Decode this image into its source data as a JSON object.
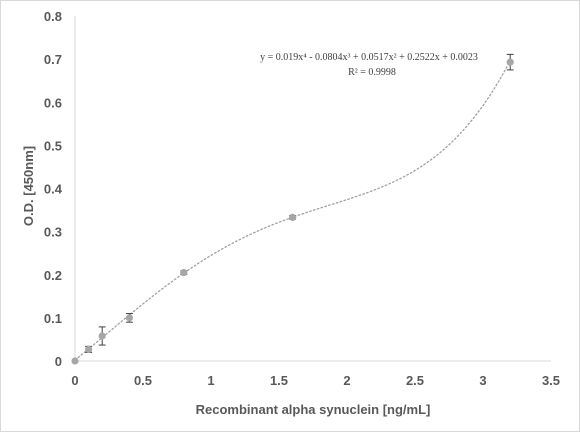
{
  "chart_data": {
    "type": "scatter",
    "title": "",
    "xlabel": "Recombinant alpha synuclein [ng/mL]",
    "ylabel": "O.D. [450nm]",
    "xlim": [
      0,
      3.5
    ],
    "ylim": [
      0,
      0.8
    ],
    "x_ticks": [
      "0",
      "0.5",
      "1",
      "1.5",
      "2",
      "2.5",
      "3",
      "3.5"
    ],
    "y_ticks": [
      "0",
      "0.1",
      "0.2",
      "0.3",
      "0.4",
      "0.5",
      "0.6",
      "0.7",
      "0.8"
    ],
    "grid": false,
    "legend": "none",
    "series": [
      {
        "x": [
          0,
          0.1,
          0.2,
          0.4,
          0.8,
          1.6,
          3.2
        ],
        "y": [
          0.0,
          0.027,
          0.058,
          0.1,
          0.205,
          0.333,
          0.693
        ],
        "error": [
          0.0,
          0.007,
          0.021,
          0.01,
          0.004,
          0.004,
          0.018
        ],
        "marker_color": "#a6a6a6",
        "error_color": "#404040"
      }
    ],
    "trendline": {
      "type": "polynomial",
      "coefficients": [
        0.019,
        -0.0804,
        0.0517,
        0.2522,
        0.0023
      ],
      "style": "dotted",
      "color": "#a0a0a0"
    },
    "annotations": {
      "equation": "y = 0.019x⁴ - 0.0804x³ + 0.0517x² + 0.2522x + 0.0023",
      "r_squared": "R² = 0.9998"
    }
  }
}
